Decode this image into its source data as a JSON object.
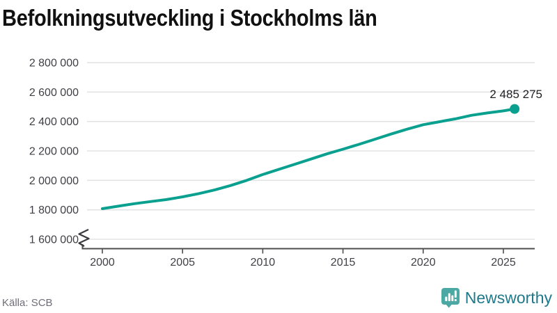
{
  "title": "Befolkningsutveckling i Stockholms län",
  "source": "Källa: SCB",
  "brand": {
    "name": "Newsworthy",
    "icon": "newsworthy-logo-icon",
    "icon_color": "#4ba8a2",
    "text_color": "#20798a"
  },
  "chart_data": {
    "type": "line",
    "title": "Befolkningsutveckling i Stockholms län",
    "xlabel": "",
    "ylabel": "",
    "grid": "horizontal",
    "axis_break_bottom": true,
    "series_color": "#09a08f",
    "x": [
      2000,
      2001,
      2002,
      2003,
      2004,
      2005,
      2006,
      2007,
      2008,
      2009,
      2010,
      2011,
      2012,
      2013,
      2014,
      2015,
      2016,
      2017,
      2018,
      2019,
      2020,
      2021,
      2022,
      2023,
      2024,
      2025,
      2025.7
    ],
    "values": [
      1808000,
      1825000,
      1842000,
      1856000,
      1870000,
      1888000,
      1910000,
      1935000,
      1965000,
      2000000,
      2040000,
      2075000,
      2110000,
      2145000,
      2180000,
      2212000,
      2245000,
      2280000,
      2315000,
      2348000,
      2378000,
      2398000,
      2418000,
      2442000,
      2458000,
      2472000,
      2485275
    ],
    "endpoint_label": "2 485 275",
    "endpoint_value": 2485275,
    "xlim": [
      2000,
      2027
    ],
    "ylim": [
      1600000,
      2800000
    ],
    "yticks": [
      {
        "value": 1600000,
        "label": "1 600 000"
      },
      {
        "value": 1800000,
        "label": "1 800 000"
      },
      {
        "value": 2000000,
        "label": "2 000 000"
      },
      {
        "value": 2200000,
        "label": "2 200 000"
      },
      {
        "value": 2400000,
        "label": "2 400 000"
      },
      {
        "value": 2600000,
        "label": "2 600 000"
      },
      {
        "value": 2800000,
        "label": "2 800 000"
      }
    ],
    "xticks": [
      {
        "value": 2000,
        "label": "2000"
      },
      {
        "value": 2005,
        "label": "2005"
      },
      {
        "value": 2010,
        "label": "2010"
      },
      {
        "value": 2015,
        "label": "2015"
      },
      {
        "value": 2020,
        "label": "2020"
      },
      {
        "value": 2025,
        "label": "2025"
      }
    ]
  }
}
